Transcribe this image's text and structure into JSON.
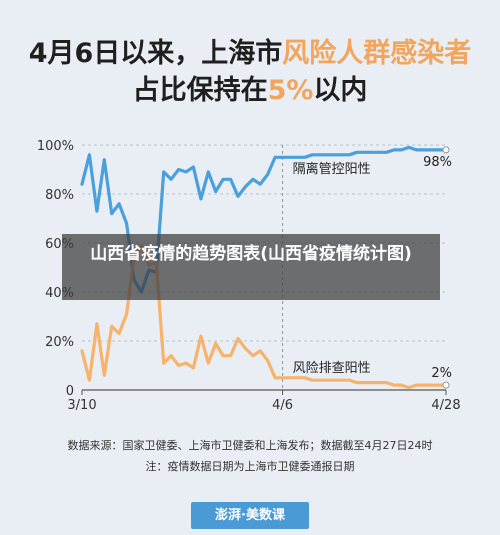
{
  "title": {
    "line1_prefix": "4月6日以来，上海市",
    "line1_highlight": "风险人群感染者",
    "line2_prefix": "占比保持在",
    "line2_highlight": "5%",
    "line2_suffix": "以内"
  },
  "overlay_caption": "山西省疫情的趋势图表(山西省疫情统计图)",
  "source_line": "数据来源：国家卫健委、上海市卫健委和上海发布；数据截至4月27日24时",
  "note_line": "注：疫情数据日期为上海市卫健委通报日期",
  "logo_text": "澎湃·美数课",
  "colors": {
    "isolation": "#4a9fdc",
    "screening": "#f7b36b",
    "grid": "#b8c3cd"
  },
  "chart_data": {
    "type": "line",
    "ylim": [
      0,
      100
    ],
    "y_ticks": [
      "0",
      "20%",
      "40%",
      "60%",
      "80%",
      "100%"
    ],
    "x_ticks": [
      {
        "day": 0,
        "label": "3/10"
      },
      {
        "day": 27,
        "label": "4/6"
      },
      {
        "day": 49,
        "label": "4/28"
      }
    ],
    "reference_day": 27,
    "x": [
      0,
      1,
      2,
      3,
      4,
      5,
      6,
      7,
      8,
      9,
      10,
      11,
      12,
      13,
      14,
      15,
      16,
      17,
      18,
      19,
      20,
      21,
      22,
      23,
      24,
      25,
      26,
      27,
      28,
      29,
      30,
      31,
      32,
      33,
      34,
      35,
      36,
      37,
      38,
      39,
      40,
      41,
      42,
      43,
      44,
      45,
      46,
      47,
      48,
      49
    ],
    "series": [
      {
        "name": "隔离管控阳性",
        "end_label": "98%",
        "values": [
          84,
          96,
          73,
          94,
          72,
          76,
          68,
          45,
          40,
          49,
          48,
          89,
          86,
          90,
          89,
          91,
          78,
          89,
          81,
          86,
          86,
          79,
          83,
          86,
          84,
          88,
          95,
          95,
          95,
          95,
          95,
          96,
          96,
          96,
          96,
          96,
          96,
          97,
          97,
          97,
          97,
          97,
          98,
          98,
          99,
          98,
          98,
          98,
          98,
          98
        ]
      },
      {
        "name": "风险排查阳性",
        "end_label": "2%",
        "values": [
          16,
          4,
          27,
          6,
          26,
          23,
          31,
          54,
          59,
          51,
          52,
          11,
          14,
          10,
          11,
          9,
          22,
          11,
          19,
          14,
          14,
          21,
          17,
          14,
          16,
          12,
          5,
          5,
          5,
          5,
          5,
          4,
          4,
          4,
          4,
          4,
          4,
          3,
          3,
          3,
          3,
          3,
          2,
          2,
          1,
          2,
          2,
          2,
          2,
          2
        ]
      }
    ]
  }
}
